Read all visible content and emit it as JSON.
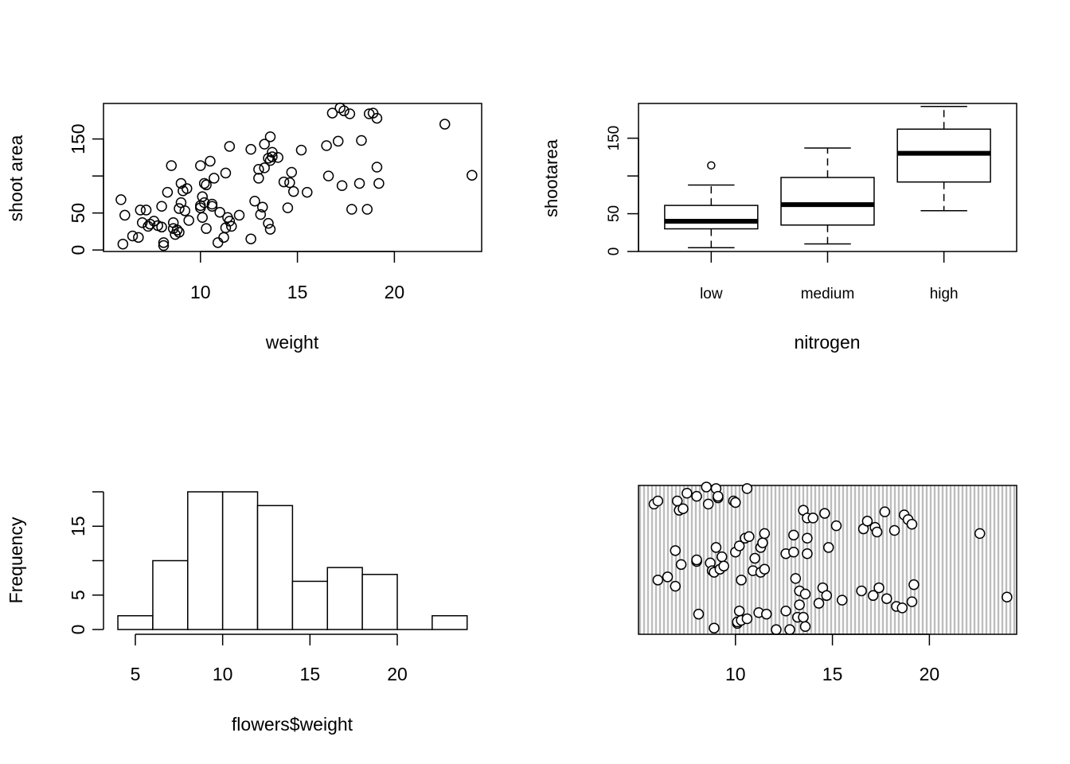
{
  "chart_data": [
    {
      "type": "scatter",
      "title": "",
      "xlabel": "weight",
      "ylabel": "shoot area",
      "xlim": [
        5.0,
        24.5
      ],
      "ylim": [
        -2,
        198
      ],
      "xticks": [
        10,
        15,
        20
      ],
      "xtick_labels": [
        "10",
        "15",
        "20"
      ],
      "yticks": [
        0,
        50,
        100,
        150
      ],
      "ytick_labels": [
        "0",
        "50",
        "",
        "150"
      ],
      "points": [
        [
          5.9,
          68
        ],
        [
          6.1,
          47
        ],
        [
          6.0,
          8
        ],
        [
          6.5,
          19
        ],
        [
          6.8,
          17
        ],
        [
          6.9,
          54
        ],
        [
          7.0,
          37
        ],
        [
          7.2,
          54
        ],
        [
          7.3,
          32
        ],
        [
          7.4,
          35
        ],
        [
          7.6,
          39
        ],
        [
          7.8,
          33
        ],
        [
          8.0,
          59
        ],
        [
          8.0,
          31
        ],
        [
          8.1,
          6
        ],
        [
          8.1,
          10
        ],
        [
          8.3,
          78
        ],
        [
          8.5,
          114
        ],
        [
          8.6,
          37
        ],
        [
          8.6,
          29
        ],
        [
          8.7,
          21
        ],
        [
          8.8,
          27
        ],
        [
          8.9,
          56
        ],
        [
          8.9,
          24
        ],
        [
          9.0,
          64
        ],
        [
          9.0,
          90
        ],
        [
          9.1,
          80
        ],
        [
          9.2,
          53
        ],
        [
          9.3,
          83
        ],
        [
          9.4,
          40
        ],
        [
          10.0,
          114
        ],
        [
          10.0,
          57
        ],
        [
          10.0,
          60
        ],
        [
          10.1,
          72
        ],
        [
          10.2,
          64
        ],
        [
          10.1,
          44
        ],
        [
          10.2,
          90
        ],
        [
          10.3,
          88
        ],
        [
          10.3,
          29
        ],
        [
          10.5,
          120
        ],
        [
          10.6,
          62
        ],
        [
          10.6,
          59
        ],
        [
          10.7,
          97
        ],
        [
          10.9,
          10
        ],
        [
          11.0,
          51
        ],
        [
          11.2,
          17
        ],
        [
          11.3,
          30
        ],
        [
          11.3,
          104
        ],
        [
          11.4,
          44
        ],
        [
          11.5,
          140
        ],
        [
          11.5,
          39
        ],
        [
          11.6,
          32
        ],
        [
          12.0,
          47
        ],
        [
          12.6,
          136
        ],
        [
          12.6,
          15
        ],
        [
          12.8,
          66
        ],
        [
          13.0,
          109
        ],
        [
          13.1,
          48
        ],
        [
          13.0,
          97
        ],
        [
          13.2,
          58
        ],
        [
          13.3,
          111
        ],
        [
          13.3,
          143
        ],
        [
          13.5,
          124
        ],
        [
          13.5,
          36
        ],
        [
          13.6,
          28
        ],
        [
          13.6,
          153
        ],
        [
          13.6,
          121
        ],
        [
          13.7,
          126
        ],
        [
          13.7,
          132
        ],
        [
          14.0,
          125
        ],
        [
          14.3,
          92
        ],
        [
          14.5,
          57
        ],
        [
          14.6,
          91
        ],
        [
          14.7,
          105
        ],
        [
          14.8,
          79
        ],
        [
          15.2,
          135
        ],
        [
          15.5,
          78
        ],
        [
          16.5,
          141
        ],
        [
          16.6,
          100
        ],
        [
          16.8,
          185
        ],
        [
          17.1,
          147
        ],
        [
          17.2,
          192
        ],
        [
          17.3,
          87
        ],
        [
          17.4,
          188
        ],
        [
          17.7,
          184
        ],
        [
          17.8,
          55
        ],
        [
          18.2,
          90
        ],
        [
          18.3,
          148
        ],
        [
          18.6,
          55
        ],
        [
          18.7,
          184
        ],
        [
          18.9,
          185
        ],
        [
          19.1,
          112
        ],
        [
          19.1,
          178
        ],
        [
          19.2,
          90
        ],
        [
          22.6,
          170
        ],
        [
          24.0,
          101
        ]
      ]
    },
    {
      "type": "box",
      "title": "",
      "xlabel": "nitrogen",
      "ylabel": "shootarea",
      "ylim": [
        0,
        196
      ],
      "yticks": [
        0,
        50,
        100,
        150
      ],
      "ytick_labels": [
        "0",
        "50",
        "",
        "150"
      ],
      "categories": [
        "low",
        "medium",
        "high"
      ],
      "boxes": [
        {
          "whisker_low": 5,
          "q1": 30,
          "median": 40,
          "q3": 61,
          "whisker_high": 88,
          "outliers": [
            114
          ]
        },
        {
          "whisker_low": 10,
          "q1": 35,
          "median": 62,
          "q3": 98,
          "whisker_high": 137,
          "outliers": []
        },
        {
          "whisker_low": 54,
          "q1": 92,
          "median": 130,
          "q3": 162,
          "whisker_high": 192,
          "outliers": []
        }
      ]
    },
    {
      "type": "bar",
      "title": "",
      "xlabel": "flowers$weight",
      "ylabel": "Frequency",
      "ylim": [
        0,
        20
      ],
      "xticks": [
        5,
        10,
        15,
        20
      ],
      "xtick_labels": [
        "5",
        "10",
        "15",
        "20"
      ],
      "yticks": [
        0,
        5,
        10,
        15,
        20
      ],
      "ytick_labels": [
        "0",
        "5",
        "",
        "15",
        ""
      ],
      "bins": [
        {
          "from": 4,
          "to": 6,
          "count": 2
        },
        {
          "from": 6,
          "to": 8,
          "count": 10
        },
        {
          "from": 8,
          "to": 10,
          "count": 20
        },
        {
          "from": 10,
          "to": 12,
          "count": 20
        },
        {
          "from": 12,
          "to": 14,
          "count": 18
        },
        {
          "from": 14,
          "to": 16,
          "count": 7
        },
        {
          "from": 16,
          "to": 18,
          "count": 9
        },
        {
          "from": 18,
          "to": 20,
          "count": 8
        },
        {
          "from": 20,
          "to": 22,
          "count": 0
        },
        {
          "from": 22,
          "to": 24,
          "count": 2
        }
      ]
    },
    {
      "type": "scatter",
      "title": "",
      "xlabel": "",
      "ylabel": "",
      "background": "vertical grey stripes",
      "stripe_color": "#bdbdbd",
      "point_fill": "#ffffff",
      "xlim": [
        5.0,
        24.5
      ],
      "ylim": [
        0,
        96
      ],
      "xticks": [
        10,
        15,
        20
      ],
      "xtick_labels": [
        "10",
        "15",
        "20"
      ],
      "points": [
        [
          5.8,
          84
        ],
        [
          6.0,
          86
        ],
        [
          6.0,
          35
        ],
        [
          6.5,
          37
        ],
        [
          6.9,
          31
        ],
        [
          6.9,
          54
        ],
        [
          7.0,
          86
        ],
        [
          7.1,
          80
        ],
        [
          7.2,
          45
        ],
        [
          7.3,
          81
        ],
        [
          7.5,
          91
        ],
        [
          8.0,
          47
        ],
        [
          8.0,
          89
        ],
        [
          8.0,
          48
        ],
        [
          8.1,
          13
        ],
        [
          8.5,
          95
        ],
        [
          8.6,
          84
        ],
        [
          8.7,
          46
        ],
        [
          8.8,
          41
        ],
        [
          8.9,
          4
        ],
        [
          8.9,
          40
        ],
        [
          9.0,
          94
        ],
        [
          9.0,
          56
        ],
        [
          9.1,
          88
        ],
        [
          9.1,
          89
        ],
        [
          9.2,
          42
        ],
        [
          9.3,
          50
        ],
        [
          9.4,
          44
        ],
        [
          9.9,
          86
        ],
        [
          10.0,
          53
        ],
        [
          10.0,
          85
        ],
        [
          10.1,
          7
        ],
        [
          10.1,
          8
        ],
        [
          10.2,
          57
        ],
        [
          10.2,
          15
        ],
        [
          10.3,
          35
        ],
        [
          10.3,
          9
        ],
        [
          10.5,
          62
        ],
        [
          10.6,
          10
        ],
        [
          10.6,
          94
        ],
        [
          10.7,
          63
        ],
        [
          10.9,
          41
        ],
        [
          11.0,
          49
        ],
        [
          11.2,
          14
        ],
        [
          11.3,
          56
        ],
        [
          11.3,
          40
        ],
        [
          11.4,
          59
        ],
        [
          11.5,
          65
        ],
        [
          11.5,
          42
        ],
        [
          11.6,
          13
        ],
        [
          12.1,
          3
        ],
        [
          12.6,
          15
        ],
        [
          12.6,
          52
        ],
        [
          12.8,
          3
        ],
        [
          13.0,
          53
        ],
        [
          13.1,
          36
        ],
        [
          13.0,
          64
        ],
        [
          13.2,
          11
        ],
        [
          13.3,
          28
        ],
        [
          13.3,
          19
        ],
        [
          13.5,
          80
        ],
        [
          13.5,
          11
        ],
        [
          13.6,
          26
        ],
        [
          13.6,
          5
        ],
        [
          13.7,
          52
        ],
        [
          13.7,
          62
        ],
        [
          13.7,
          75
        ],
        [
          14.0,
          75
        ],
        [
          14.3,
          20
        ],
        [
          14.5,
          30
        ],
        [
          14.6,
          78
        ],
        [
          14.7,
          25
        ],
        [
          14.8,
          56
        ],
        [
          15.2,
          70
        ],
        [
          15.5,
          22
        ],
        [
          16.5,
          28
        ],
        [
          16.6,
          68
        ],
        [
          16.8,
          73
        ],
        [
          17.1,
          25
        ],
        [
          17.2,
          69
        ],
        [
          17.3,
          66
        ],
        [
          17.4,
          30
        ],
        [
          17.7,
          79
        ],
        [
          17.8,
          23
        ],
        [
          18.2,
          67
        ],
        [
          18.3,
          18
        ],
        [
          18.6,
          17
        ],
        [
          18.7,
          77
        ],
        [
          18.9,
          74
        ],
        [
          19.1,
          21
        ],
        [
          19.1,
          71
        ],
        [
          19.2,
          32
        ],
        [
          22.6,
          65
        ],
        [
          24.0,
          24
        ]
      ]
    }
  ]
}
